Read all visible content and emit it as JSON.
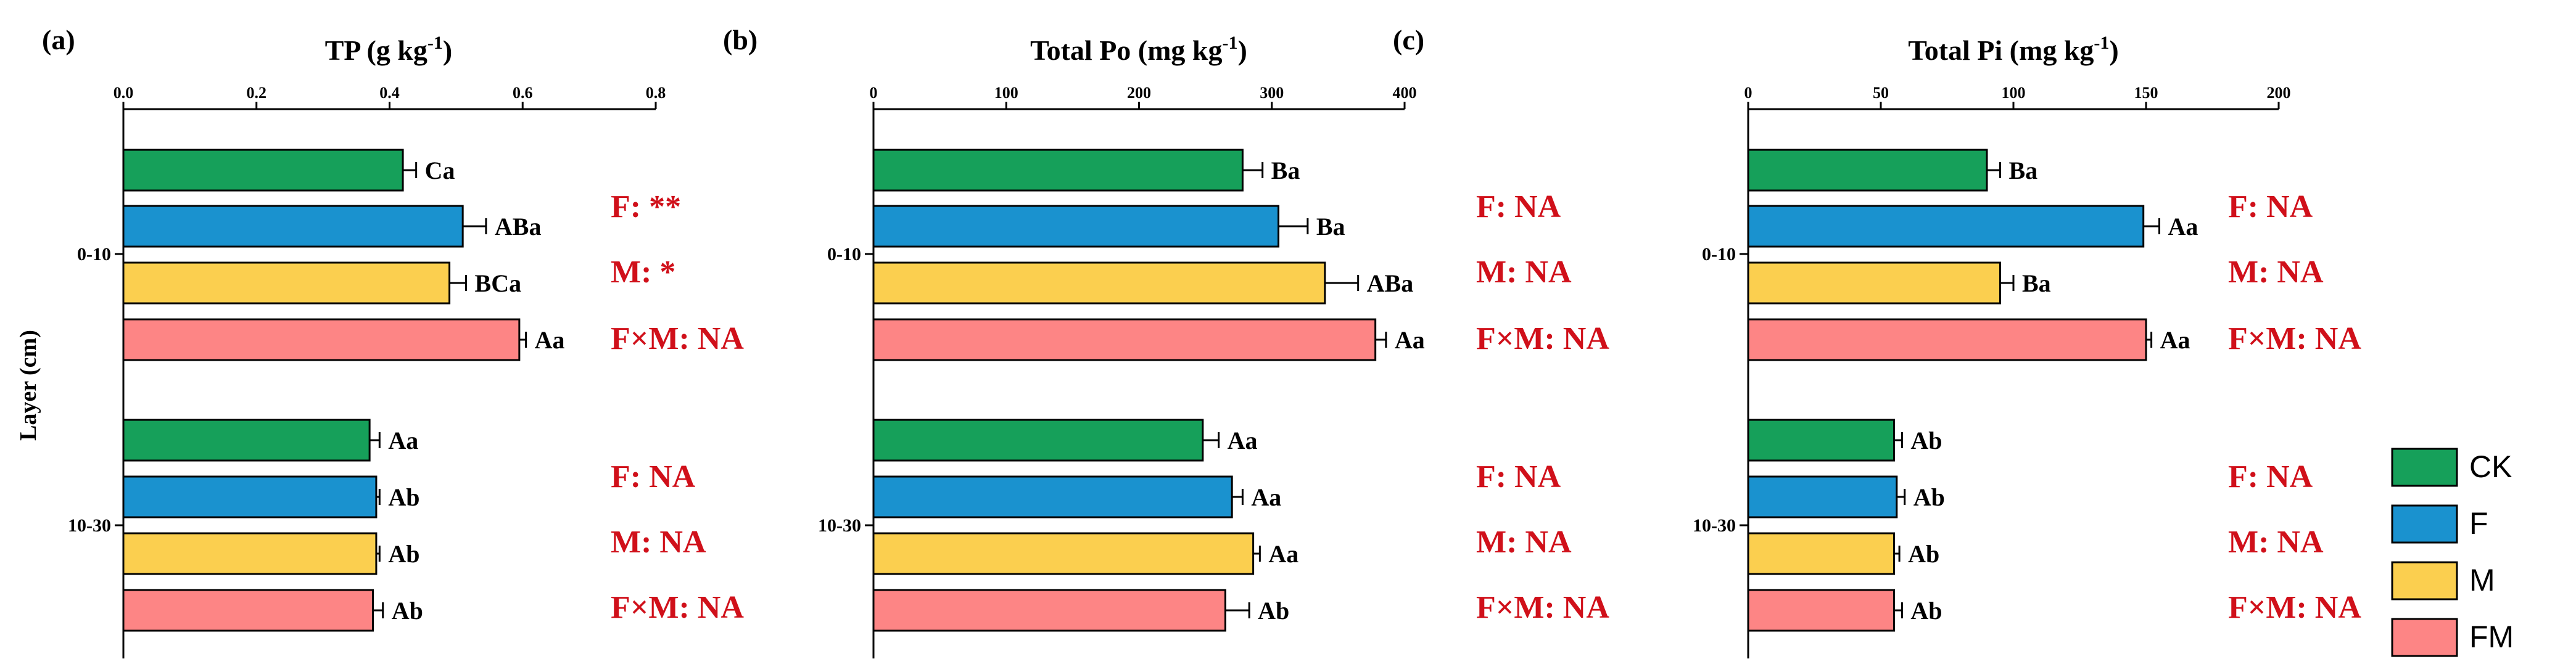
{
  "figure": {
    "ylabel": "Layer (cm)",
    "groups": [
      "0-10",
      "10-30"
    ],
    "treatments": [
      "CK",
      "F",
      "M",
      "FM"
    ],
    "colors": {
      "CK": "#16a05a",
      "F": "#1a92cf",
      "M": "#fbcf4f",
      "FM": "#fd8585"
    },
    "stat_color": "#d0101a"
  },
  "legend": {
    "items": [
      {
        "label": "CK",
        "color": "#16a05a"
      },
      {
        "label": "F",
        "color": "#1a92cf"
      },
      {
        "label": "M",
        "color": "#fbcf4f"
      },
      {
        "label": "FM",
        "color": "#fd8585"
      }
    ]
  },
  "chart_data": [
    {
      "type": "bar",
      "orientation": "horizontal",
      "panel_label": "(a)",
      "title": "TP (g kg",
      "title_sup": "-1",
      "title_end": ")",
      "xlim": [
        0,
        0.8
      ],
      "ticks": [
        0.0,
        0.2,
        0.4,
        0.6,
        0.8
      ],
      "tick_labels": [
        "0.0",
        "0.2",
        "0.4",
        "0.6",
        "0.8"
      ],
      "categories": [
        "0-10",
        "10-30"
      ],
      "series": [
        {
          "name": "CK",
          "values": [
            0.42,
            0.37
          ],
          "errors": [
            0.02,
            0.015
          ],
          "letters": [
            "Ca",
            "Aa"
          ]
        },
        {
          "name": "F",
          "values": [
            0.51,
            0.38
          ],
          "errors": [
            0.035,
            0.005
          ],
          "letters": [
            "ABa",
            "Ab"
          ]
        },
        {
          "name": "M",
          "values": [
            0.49,
            0.38
          ],
          "errors": [
            0.025,
            0.005
          ],
          "letters": [
            "BCa",
            "Ab"
          ]
        },
        {
          "name": "FM",
          "values": [
            0.595,
            0.375
          ],
          "errors": [
            0.01,
            0.015
          ],
          "letters": [
            "Aa",
            "Ab"
          ]
        }
      ],
      "stats": [
        [
          "F: **",
          "M: *",
          "F×M: NA"
        ],
        [
          "F: NA",
          "M: NA",
          "F×M: NA"
        ]
      ]
    },
    {
      "type": "bar",
      "orientation": "horizontal",
      "panel_label": "(b)",
      "title": "Total Po (mg kg",
      "title_sup": "-1",
      "title_end": ")",
      "xlim": [
        0,
        400
      ],
      "ticks": [
        0,
        100,
        200,
        300,
        400
      ],
      "tick_labels": [
        "0",
        "100",
        "200",
        "300",
        "400"
      ],
      "categories": [
        "0-10",
        "10-30"
      ],
      "series": [
        {
          "name": "CK",
          "values": [
            278,
            248
          ],
          "errors": [
            15,
            12
          ],
          "letters": [
            "Ba",
            "Aa"
          ]
        },
        {
          "name": "F",
          "values": [
            305,
            270
          ],
          "errors": [
            22,
            8
          ],
          "letters": [
            "Ba",
            "Aa"
          ]
        },
        {
          "name": "M",
          "values": [
            340,
            286
          ],
          "errors": [
            25,
            5
          ],
          "letters": [
            "ABa",
            "Aa"
          ]
        },
        {
          "name": "FM",
          "values": [
            378,
            265
          ],
          "errors": [
            8,
            18
          ],
          "letters": [
            "Aa",
            "Ab"
          ]
        }
      ],
      "stats": [
        [
          "F: NA",
          "M: NA",
          "F×M: NA"
        ],
        [
          "F: NA",
          "M: NA",
          "F×M: NA"
        ]
      ]
    },
    {
      "type": "bar",
      "orientation": "horizontal",
      "panel_label": "(c)",
      "title": "Total Pi  (mg kg",
      "title_sup": "-1",
      "title_end": ")",
      "xlim": [
        0,
        200
      ],
      "ticks": [
        0,
        50,
        100,
        150,
        200
      ],
      "tick_labels": [
        "0",
        "50",
        "100",
        "150",
        "200"
      ],
      "categories": [
        "0-10",
        "10-30"
      ],
      "series": [
        {
          "name": "CK",
          "values": [
            90,
            55
          ],
          "errors": [
            5,
            3
          ],
          "letters": [
            "Ba",
            "Ab"
          ]
        },
        {
          "name": "F",
          "values": [
            149,
            56
          ],
          "errors": [
            6,
            3
          ],
          "letters": [
            "Aa",
            "Ab"
          ]
        },
        {
          "name": "M",
          "values": [
            95,
            55
          ],
          "errors": [
            5,
            2
          ],
          "letters": [
            "Ba",
            "Ab"
          ]
        },
        {
          "name": "FM",
          "values": [
            150,
            55
          ],
          "errors": [
            2,
            3
          ],
          "letters": [
            "Aa",
            "Ab"
          ]
        }
      ],
      "stats": [
        [
          "F: NA",
          "M: NA",
          "F×M: NA"
        ],
        [
          "F: NA",
          "M: NA",
          "F×M: NA"
        ]
      ]
    }
  ]
}
